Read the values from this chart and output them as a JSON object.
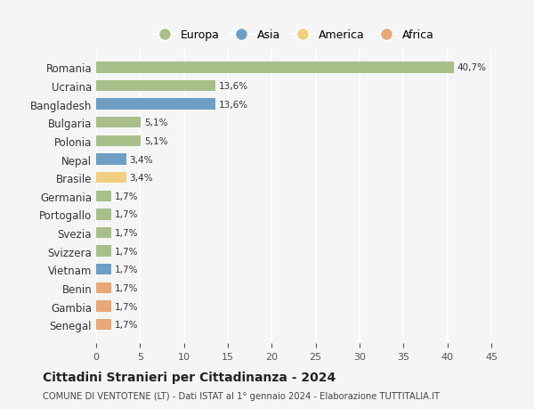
{
  "categories": [
    "Romania",
    "Ucraina",
    "Bangladesh",
    "Bulgaria",
    "Polonia",
    "Nepal",
    "Brasile",
    "Germania",
    "Portogallo",
    "Svezia",
    "Svizzera",
    "Vietnam",
    "Benin",
    "Gambia",
    "Senegal"
  ],
  "values": [
    40.7,
    13.6,
    13.6,
    5.1,
    5.1,
    3.4,
    3.4,
    1.7,
    1.7,
    1.7,
    1.7,
    1.7,
    1.7,
    1.7,
    1.7
  ],
  "labels": [
    "40,7%",
    "13,6%",
    "13,6%",
    "5,1%",
    "5,1%",
    "3,4%",
    "3,4%",
    "1,7%",
    "1,7%",
    "1,7%",
    "1,7%",
    "1,7%",
    "1,7%",
    "1,7%",
    "1,7%"
  ],
  "colors": [
    "#a8bf8a",
    "#a8bf8a",
    "#6f9ec4",
    "#a8bf8a",
    "#a8bf8a",
    "#6f9ec4",
    "#f0d080",
    "#a8bf8a",
    "#a8bf8a",
    "#a8bf8a",
    "#a8bf8a",
    "#6f9ec4",
    "#e8a878",
    "#e8a878",
    "#e8a878"
  ],
  "legend_labels": [
    "Europa",
    "Asia",
    "America",
    "Africa"
  ],
  "legend_colors": [
    "#a8bf8a",
    "#6f9ec4",
    "#f0d080",
    "#e8a878"
  ],
  "xlim": [
    0,
    45
  ],
  "xticks": [
    0,
    5,
    10,
    15,
    20,
    25,
    30,
    35,
    40,
    45
  ],
  "title": "Cittadini Stranieri per Cittadinanza - 2024",
  "subtitle": "COMUNE DI VENTOTENE (LT) - Dati ISTAT al 1° gennaio 2024 - Elaborazione TUTTITALIA.IT",
  "bg_color": "#f5f5f5",
  "bar_height": 0.6,
  "figsize": [
    6.0,
    4.6
  ],
  "dpi": 100
}
